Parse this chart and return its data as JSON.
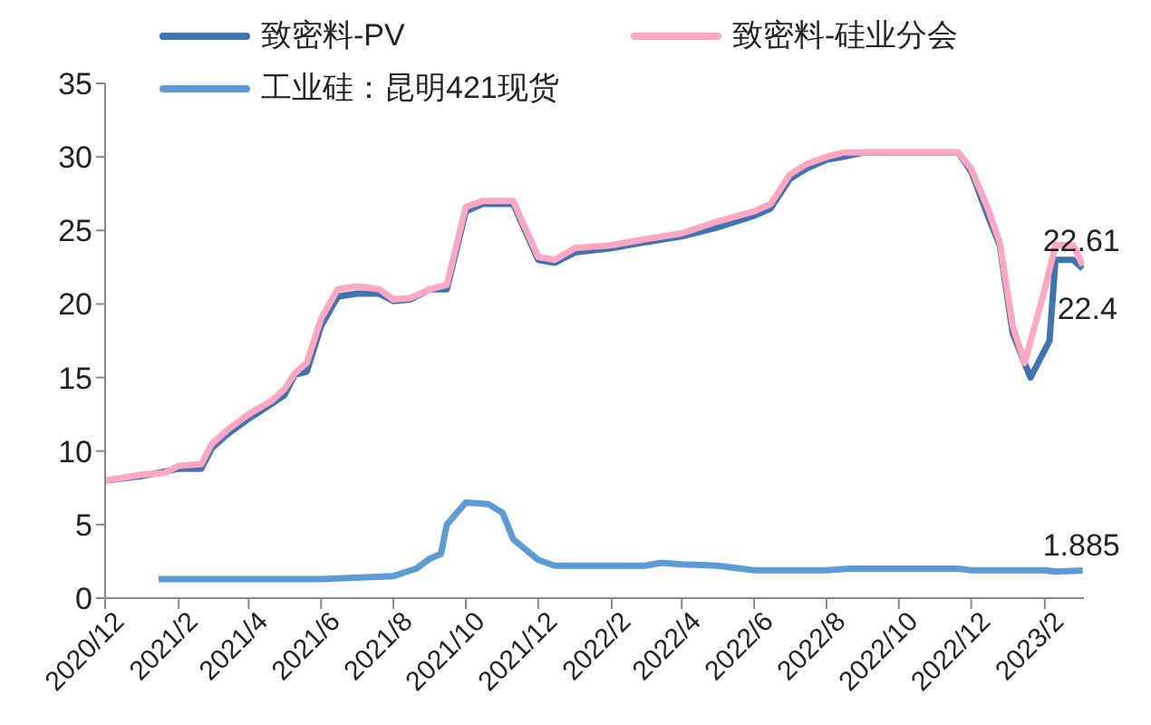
{
  "chart_data": {
    "type": "line",
    "legend": "top",
    "marker": "none",
    "line_style": "solid",
    "xlim": [
      "2020-12-01",
      "2023-03-06"
    ],
    "xticks": [
      {
        "value": "2020-12-01",
        "label": "2020/12"
      },
      {
        "value": "2021-02-01",
        "label": "2021/2"
      },
      {
        "value": "2021-04-01",
        "label": "2021/4"
      },
      {
        "value": "2021-06-01",
        "label": "2021/6"
      },
      {
        "value": "2021-08-01",
        "label": "2021/8"
      },
      {
        "value": "2021-10-01",
        "label": "2021/10"
      },
      {
        "value": "2021-12-01",
        "label": "2021/12"
      },
      {
        "value": "2022-02-01",
        "label": "2022/2"
      },
      {
        "value": "2022-04-01",
        "label": "2022/4"
      },
      {
        "value": "2022-06-01",
        "label": "2022/6"
      },
      {
        "value": "2022-08-01",
        "label": "2022/8"
      },
      {
        "value": "2022-10-01",
        "label": "2022/10"
      },
      {
        "value": "2022-12-01",
        "label": "2022/12"
      },
      {
        "value": "2023-02-01",
        "label": "2023/2"
      }
    ],
    "ylim": [
      0,
      35
    ],
    "yticks": [
      0,
      5,
      10,
      15,
      20,
      25,
      30,
      35
    ],
    "series": [
      {
        "name": "致密料-PV",
        "color": "#3e74b0",
        "x": [
          "2020-12-01",
          "2021-01-01",
          "2021-01-20",
          "2021-02-01",
          "2021-02-20",
          "2021-03-01",
          "2021-03-15",
          "2021-04-01",
          "2021-04-20",
          "2021-05-01",
          "2021-05-10",
          "2021-05-20",
          "2021-06-01",
          "2021-06-15",
          "2021-07-01",
          "2021-07-20",
          "2021-08-01",
          "2021-08-15",
          "2021-09-01",
          "2021-09-15",
          "2021-10-01",
          "2021-10-15",
          "2021-11-01",
          "2021-11-10",
          "2021-12-01",
          "2021-12-15",
          "2022-01-01",
          "2022-02-01",
          "2022-03-01",
          "2022-04-01",
          "2022-05-01",
          "2022-06-01",
          "2022-06-15",
          "2022-07-01",
          "2022-07-15",
          "2022-08-01",
          "2022-08-15",
          "2022-09-01",
          "2022-10-01",
          "2022-11-01",
          "2022-11-20",
          "2022-12-01",
          "2022-12-15",
          "2022-12-25",
          "2023-01-05",
          "2023-01-20",
          "2023-02-05",
          "2023-02-10",
          "2023-02-25",
          "2023-03-05"
        ],
        "values": [
          8.0,
          8.3,
          8.6,
          8.8,
          8.8,
          10.2,
          11.2,
          12.2,
          13.2,
          13.8,
          15.2,
          15.4,
          18.5,
          20.5,
          20.7,
          20.7,
          20.2,
          20.3,
          21.0,
          21.0,
          26.3,
          26.8,
          26.8,
          26.8,
          23.0,
          22.8,
          23.5,
          23.8,
          24.2,
          24.6,
          25.2,
          26.0,
          26.5,
          28.5,
          29.2,
          29.8,
          30.0,
          30.3,
          30.3,
          30.3,
          30.3,
          29.0,
          26.0,
          24.0,
          18.0,
          15.0,
          17.5,
          23.0,
          23.0,
          22.4
        ],
        "value_labels": [
          null,
          null,
          null,
          null,
          null,
          null,
          null,
          null,
          null,
          null,
          null,
          null,
          null,
          null,
          null,
          null,
          null,
          null,
          null,
          null,
          null,
          null,
          null,
          null,
          null,
          null,
          null,
          null,
          null,
          null,
          null,
          null,
          null,
          null,
          null,
          null,
          null,
          null,
          null,
          null,
          null,
          null,
          null,
          null,
          null,
          null,
          null,
          null,
          null,
          "22.4"
        ]
      },
      {
        "name": "致密料-硅业分会",
        "color": "#ffa6c0",
        "x": [
          "2020-12-01",
          "2021-01-01",
          "2021-01-20",
          "2021-02-01",
          "2021-02-20",
          "2021-03-01",
          "2021-03-15",
          "2021-04-01",
          "2021-04-20",
          "2021-05-01",
          "2021-05-10",
          "2021-05-20",
          "2021-06-01",
          "2021-06-15",
          "2021-07-01",
          "2021-07-20",
          "2021-08-01",
          "2021-08-15",
          "2021-09-01",
          "2021-09-15",
          "2021-10-01",
          "2021-10-15",
          "2021-11-01",
          "2021-11-10",
          "2021-12-01",
          "2021-12-15",
          "2022-01-01",
          "2022-02-01",
          "2022-03-01",
          "2022-04-01",
          "2022-05-01",
          "2022-06-01",
          "2022-06-15",
          "2022-07-01",
          "2022-07-15",
          "2022-08-01",
          "2022-08-15",
          "2022-09-01",
          "2022-10-01",
          "2022-11-01",
          "2022-11-20",
          "2022-12-01",
          "2022-12-15",
          "2022-12-25",
          "2023-01-05",
          "2023-01-15",
          "2023-02-01",
          "2023-02-10",
          "2023-02-25",
          "2023-03-05"
        ],
        "values": [
          8.0,
          8.4,
          8.5,
          9.0,
          9.1,
          10.5,
          11.5,
          12.5,
          13.4,
          14.2,
          15.3,
          16.0,
          19.0,
          21.0,
          21.2,
          21.0,
          20.3,
          20.4,
          21.0,
          21.3,
          26.6,
          27.0,
          27.0,
          27.0,
          23.2,
          23.0,
          23.8,
          24.0,
          24.4,
          24.8,
          25.6,
          26.3,
          26.8,
          28.8,
          29.5,
          30.0,
          30.3,
          30.3,
          30.3,
          30.3,
          30.3,
          29.2,
          26.5,
          24.2,
          18.5,
          16.0,
          21.0,
          24.0,
          24.0,
          22.61
        ],
        "value_labels": [
          null,
          null,
          null,
          null,
          null,
          null,
          null,
          null,
          null,
          null,
          null,
          null,
          null,
          null,
          null,
          null,
          null,
          null,
          null,
          null,
          null,
          null,
          null,
          null,
          null,
          null,
          null,
          null,
          null,
          null,
          null,
          null,
          null,
          null,
          null,
          null,
          null,
          null,
          null,
          null,
          null,
          null,
          null,
          null,
          null,
          null,
          null,
          null,
          null,
          "22.61"
        ]
      },
      {
        "name": "工业硅：昆明421现货",
        "color": "#5b9bd5",
        "x": [
          "2021-01-15",
          "2021-06-01",
          "2021-08-01",
          "2021-08-20",
          "2021-09-01",
          "2021-09-10",
          "2021-09-15",
          "2021-10-01",
          "2021-10-20",
          "2021-11-01",
          "2021-11-10",
          "2021-12-01",
          "2021-12-15",
          "2022-03-01",
          "2022-03-15",
          "2022-04-01",
          "2022-05-01",
          "2022-06-01",
          "2022-08-01",
          "2022-08-20",
          "2022-11-20",
          "2022-12-01",
          "2023-02-01",
          "2023-02-10",
          "2023-03-05"
        ],
        "values": [
          1.3,
          1.3,
          1.5,
          2.0,
          2.7,
          3.0,
          5.0,
          6.5,
          6.4,
          5.8,
          4.0,
          2.6,
          2.2,
          2.2,
          2.4,
          2.3,
          2.2,
          1.9,
          1.9,
          2.0,
          2.0,
          1.9,
          1.9,
          1.8,
          1.885
        ],
        "value_labels": [
          null,
          null,
          null,
          null,
          null,
          null,
          null,
          null,
          null,
          null,
          null,
          null,
          null,
          null,
          null,
          null,
          null,
          null,
          null,
          null,
          null,
          null,
          null,
          null,
          "1.885"
        ]
      }
    ]
  }
}
